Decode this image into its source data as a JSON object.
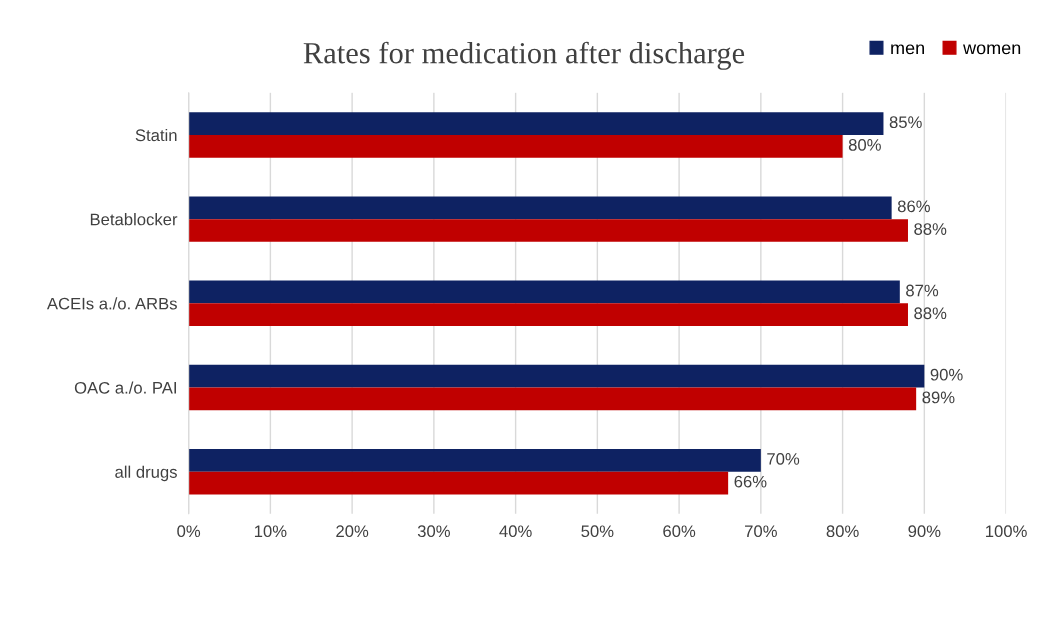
{
  "chart_data": {
    "type": "bar",
    "orientation": "horizontal",
    "title": "Rates for medication after discharge",
    "categories": [
      "Statin",
      "Betablocker",
      "ACEIs a./o. ARBs",
      "OAC a./o. PAI",
      "all drugs"
    ],
    "series": [
      {
        "name": "men",
        "color": "#0e2262",
        "values": [
          85,
          86,
          87,
          90,
          70
        ],
        "value_labels": [
          "85%",
          "86%",
          "87%",
          "90%",
          "70%"
        ]
      },
      {
        "name": "women",
        "color": "#c00000",
        "values": [
          80,
          88,
          88,
          89,
          66
        ],
        "value_labels": [
          "80%",
          "88%",
          "88%",
          "89%",
          "66%"
        ]
      }
    ],
    "xlim": [
      0,
      100
    ],
    "xticks": [
      {
        "value": 0,
        "label": "0%"
      },
      {
        "value": 10,
        "label": "10%"
      },
      {
        "value": 20,
        "label": "20%"
      },
      {
        "value": 30,
        "label": "30%"
      },
      {
        "value": 40,
        "label": "40%"
      },
      {
        "value": 50,
        "label": "50%"
      },
      {
        "value": 60,
        "label": "60%"
      },
      {
        "value": 70,
        "label": "70%"
      },
      {
        "value": 80,
        "label": "80%"
      },
      {
        "value": 90,
        "label": "90%"
      },
      {
        "value": 100,
        "label": "100%"
      }
    ],
    "grid": "x",
    "legend": "top right"
  }
}
